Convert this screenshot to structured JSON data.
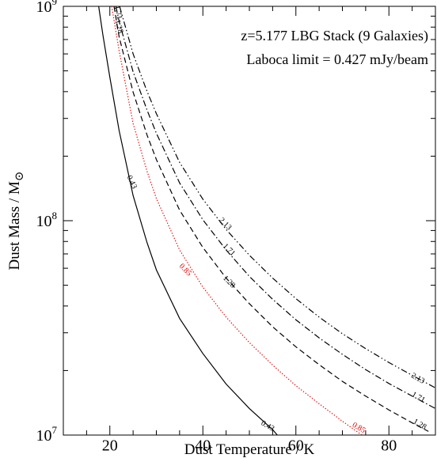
{
  "chart_data": {
    "type": "line",
    "xlabel": "Dust Temperature / K",
    "ylabel": "Dust Mass / M",
    "ylabel_symbol": "⊙",
    "xlim": [
      10,
      90
    ],
    "ylim": [
      10000000,
      1000000000
    ],
    "y_scale": "log",
    "x_ticks": [
      20,
      40,
      60,
      80
    ],
    "x_tick_labels": [
      "20",
      "40",
      "60",
      "80"
    ],
    "y_tick_labels": [
      {
        "base": "10",
        "exp": "7",
        "value": 10000000
      },
      {
        "base": "10",
        "exp": "8",
        "value": 100000000
      },
      {
        "base": "10",
        "exp": "9",
        "value": 1000000000
      }
    ],
    "annotations": [
      "z=5.177 LBG Stack (9 Galaxies)",
      "Laboca limit = 0.427 mJy/beam"
    ],
    "grid": false,
    "series": [
      {
        "name": "0.43",
        "color": "#000000",
        "style": "solid",
        "x": [
          17.6,
          18.5,
          20,
          22,
          25,
          28,
          30,
          35,
          40,
          45,
          50,
          55,
          56
        ],
        "y": [
          1000000000,
          737000000,
          467000000,
          263000000,
          131000000,
          79000000,
          59000000,
          35000000,
          24000000,
          17300000,
          13300000,
          10600000,
          10000000
        ]
      },
      {
        "name": "0.85",
        "color": "#dd0000",
        "style": "dotted",
        "x": [
          20.4,
          22,
          25,
          28,
          30,
          35,
          40,
          45,
          50,
          55,
          60,
          65,
          70,
          74.2
        ],
        "y": [
          1000000000,
          620000000,
          284000000,
          170000000,
          127000000,
          73000000,
          49000000,
          35500000,
          27000000,
          21200000,
          17000000,
          14000000,
          11600000,
          10000000
        ]
      },
      {
        "name": "1.28",
        "color": "#000000",
        "style": "dashed",
        "x": [
          20.9,
          22,
          25,
          28,
          30,
          35,
          40,
          45,
          50,
          55,
          60,
          65,
          70,
          75,
          80,
          85,
          88.5
        ],
        "y": [
          1000000000,
          720000000,
          398000000,
          251000000,
          193000000,
          112000000,
          75000000,
          54000000,
          41000000,
          32000000,
          25800000,
          21300000,
          17800000,
          15200000,
          13100000,
          11400000,
          10400000
        ]
      },
      {
        "name": "1.71",
        "color": "#000000",
        "style": "dashdot",
        "x": [
          21.3,
          22,
          25,
          28,
          30,
          35,
          40,
          45,
          50,
          55,
          60,
          65,
          70,
          75,
          80,
          85,
          90
        ],
        "y": [
          1000000000,
          850000000,
          495000000,
          328000000,
          256000000,
          150000000,
          101000000,
          73000000,
          55000000,
          43000000,
          34500000,
          28400000,
          23800000,
          20200000,
          17400000,
          15200000,
          13300000
        ]
      },
      {
        "name": "2.13",
        "color": "#000000",
        "style": "dashdotdot",
        "x": [
          22.1,
          25,
          28,
          30,
          35,
          40,
          45,
          50,
          55,
          60,
          65,
          70,
          75,
          80,
          85,
          90
        ],
        "y": [
          1000000000,
          600000000,
          401000000,
          316000000,
          187000000,
          126000000,
          91000000,
          69000000,
          54000000,
          43300000,
          35500000,
          29700000,
          25300000,
          21800000,
          19000000,
          16600000
        ]
      }
    ],
    "contour_labels": [
      {
        "text": "0.43",
        "x": 24.3,
        "y": 150000000,
        "color": "#000000"
      },
      {
        "text": "0.43",
        "x": 53.7,
        "y": 10800000,
        "color": "#000000"
      },
      {
        "text": "0.85",
        "x": 35.9,
        "y": 58000000,
        "color": "#dd0000"
      },
      {
        "text": "0.85",
        "x": 73.3,
        "y": 10600000,
        "color": "#dd0000"
      },
      {
        "text": "1.28",
        "x": 45.3,
        "y": 51000000,
        "color": "#000000"
      },
      {
        "text": "1.28",
        "x": 86.4,
        "y": 11000000,
        "color": "#000000"
      },
      {
        "text": "1.28",
        "x": 21.5,
        "y": 800000000,
        "color": "#000000"
      },
      {
        "text": "1.71",
        "x": 45.3,
        "y": 72000000,
        "color": "#000000"
      },
      {
        "text": "1.71",
        "x": 86.1,
        "y": 14700000,
        "color": "#000000"
      },
      {
        "text": "1.71",
        "x": 21.3,
        "y": 930000000,
        "color": "#000000"
      },
      {
        "text": "2.13",
        "x": 44.5,
        "y": 95000000,
        "color": "#000000"
      },
      {
        "text": "2.13",
        "x": 86.0,
        "y": 18000000,
        "color": "#000000"
      }
    ]
  }
}
